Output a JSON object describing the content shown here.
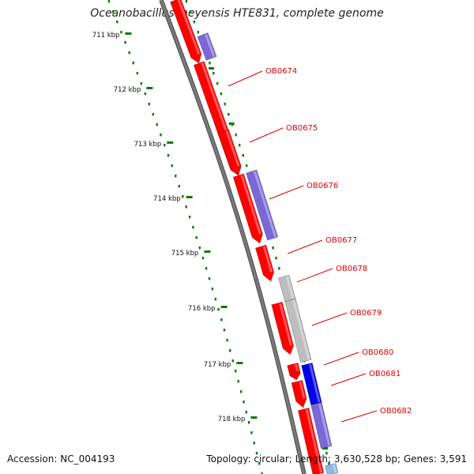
{
  "title": "Oceanobacillus iheyensis HTE831, complete genome",
  "footer": {
    "accession": "Accession: NC_004193",
    "summary": "Topology: circular; Length: 3,630,528 bp; Genes: 3,591"
  },
  "colors": {
    "forward_gene": "#ff0000",
    "reverse_gene": "#7b68d6",
    "gray_gene": "#bdbdbd",
    "blue_gene": "#0000e6",
    "light_blue_gene": "#8ab8e6",
    "backbone": "#7a7a7a",
    "tick": "#0a7a0a",
    "gene_label": "#dd0000"
  },
  "tick_labels": [
    "711 kbp",
    "712 kbp",
    "713 kbp",
    "714 kbp",
    "715 kbp",
    "716 kbp",
    "717 kbp",
    "718 kbp"
  ],
  "gene_labels": [
    "OB0674",
    "OB0675",
    "OB0676",
    "OB0677",
    "OB0678",
    "OB0679",
    "OB0680",
    "OB0681",
    "OB0682"
  ]
}
